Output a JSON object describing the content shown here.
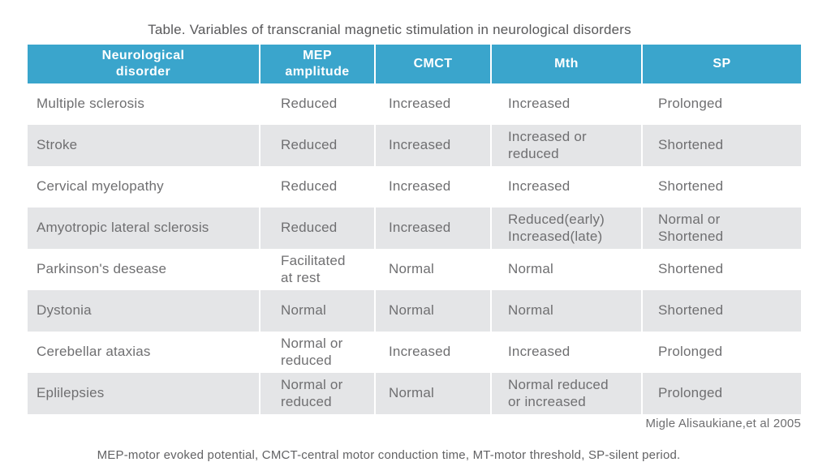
{
  "title": "Table. Variables of transcranial magnetic stimulation in neurological disorders",
  "table": {
    "headers": [
      "Neurological\ndisorder",
      "MEP\namplitude",
      "CMCT",
      "Mth",
      "SP"
    ],
    "rows": [
      [
        "Multiple sclerosis",
        "Reduced",
        "Increased",
        "Increased",
        "Prolonged"
      ],
      [
        "Stroke",
        "Reduced",
        "Increased",
        "Increased or\nreduced",
        "Shortened"
      ],
      [
        "Cervical myelopathy",
        "Reduced",
        "Increased",
        "Increased",
        "Shortened"
      ],
      [
        "Amyotropic lateral sclerosis",
        "Reduced",
        "Increased",
        "Reduced(early)\nIncreased(late)",
        "Normal or\nShortened"
      ],
      [
        "Parkinson's desease",
        "Facilitated\nat rest",
        "Normal",
        "Normal",
        "Shortened"
      ],
      [
        "Dystonia",
        "Normal",
        "Normal",
        "Normal",
        "Shortened"
      ],
      [
        "Cerebellar ataxias",
        "Normal or\nreduced",
        "Increased",
        "Increased",
        "Prolonged"
      ],
      [
        "Eplilepsies",
        "Normal or\nreduced",
        "Normal",
        "Normal reduced\nor increased",
        "Prolonged"
      ]
    ]
  },
  "citation": "Migle Alisaukiane,et al 2005",
  "footnote": "MEP-motor evoked potential, CMCT-central motor conduction time, MT-motor threshold, SP-silent period.",
  "colors": {
    "header_bg": "#3AA5CC",
    "row_stripe_bg": "#E4E5E7",
    "header_text": "#FFFFFF",
    "body_text": "#6F6F71"
  }
}
